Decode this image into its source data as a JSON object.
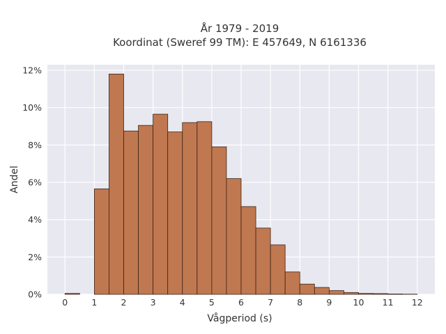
{
  "chart_data": {
    "type": "bar",
    "title_line1": "År 1979 - 2019",
    "title_line2": "Koordinat (Sweref 99 TM): E 457649, N 6161336",
    "xlabel": "Vågperiod (s)",
    "ylabel": "Andel",
    "xlim": [
      -0.6,
      12.6
    ],
    "ylim": [
      0,
      12.3
    ],
    "x_ticks": [
      0,
      1,
      2,
      3,
      4,
      5,
      6,
      7,
      8,
      9,
      10,
      11,
      12
    ],
    "y_ticks": [
      0,
      2,
      4,
      6,
      8,
      10,
      12
    ],
    "y_tick_labels": [
      "0%",
      "2%",
      "4%",
      "6%",
      "8%",
      "10%",
      "12%"
    ],
    "bin_width": 0.5,
    "bins": [
      {
        "start": 0.0,
        "value": 0.05
      },
      {
        "start": 1.0,
        "value": 5.65
      },
      {
        "start": 1.5,
        "value": 11.8
      },
      {
        "start": 2.0,
        "value": 8.75
      },
      {
        "start": 2.5,
        "value": 9.05
      },
      {
        "start": 3.0,
        "value": 9.65
      },
      {
        "start": 3.5,
        "value": 8.7
      },
      {
        "start": 4.0,
        "value": 9.2
      },
      {
        "start": 4.5,
        "value": 9.25
      },
      {
        "start": 5.0,
        "value": 7.9
      },
      {
        "start": 5.5,
        "value": 6.2
      },
      {
        "start": 6.0,
        "value": 4.7
      },
      {
        "start": 6.5,
        "value": 3.55
      },
      {
        "start": 7.0,
        "value": 2.65
      },
      {
        "start": 7.5,
        "value": 1.2
      },
      {
        "start": 8.0,
        "value": 0.55
      },
      {
        "start": 8.5,
        "value": 0.37
      },
      {
        "start": 9.0,
        "value": 0.2
      },
      {
        "start": 9.5,
        "value": 0.1
      },
      {
        "start": 10.0,
        "value": 0.05
      },
      {
        "start": 10.5,
        "value": 0.04
      },
      {
        "start": 11.0,
        "value": 0.02
      },
      {
        "start": 11.5,
        "value": 0.01
      }
    ],
    "grid": true,
    "colors": {
      "bar_fill": "#c07850",
      "bar_stroke": "#3a2418",
      "plot_background": "#e8e8f0",
      "grid": "#ffffff",
      "text": "#333333"
    }
  }
}
